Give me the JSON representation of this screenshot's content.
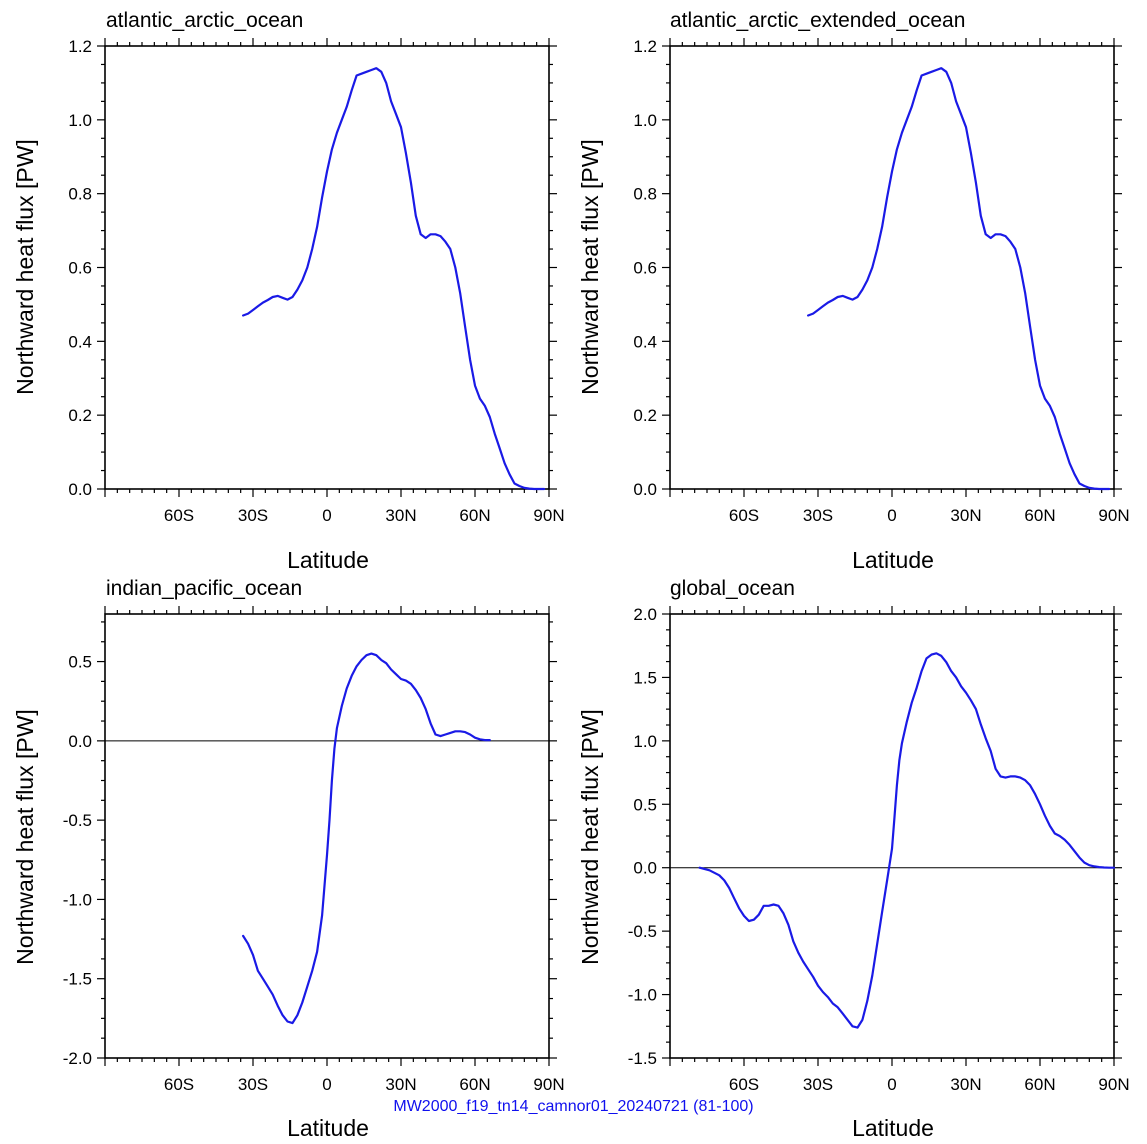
{
  "footer": "MW2000_f19_tn14_camnor01_20240721 (81-100)",
  "style": {
    "line_color": "#1a1ae6",
    "zero_line_color": "#000000"
  },
  "chart_data": [
    {
      "type": "line",
      "title": "atlantic_arctic_ocean",
      "xlabel": "Latitude",
      "ylabel": "Northward heat flux [PW]",
      "xlim": [
        -90,
        90
      ],
      "ylim": [
        0,
        1.2
      ],
      "xticks": [
        {
          "v": -60,
          "l": "60S"
        },
        {
          "v": -30,
          "l": "30S"
        },
        {
          "v": 0,
          "l": "0"
        },
        {
          "v": 30,
          "l": "30N"
        },
        {
          "v": 60,
          "l": "60N"
        },
        {
          "v": 90,
          "l": "90N"
        }
      ],
      "yticks": [
        {
          "v": 0,
          "l": "0.0"
        },
        {
          "v": 0.2,
          "l": "0.2"
        },
        {
          "v": 0.4,
          "l": "0.4"
        },
        {
          "v": 0.6,
          "l": "0.6"
        },
        {
          "v": 0.8,
          "l": "0.8"
        },
        {
          "v": 1.0,
          "l": "1.0"
        },
        {
          "v": 1.2,
          "l": "1.2"
        }
      ],
      "zero_line": false,
      "x": [
        -34,
        -32,
        -30,
        -28,
        -26,
        -24,
        -22,
        -20,
        -18,
        -16,
        -14,
        -12,
        -10,
        -8,
        -6,
        -4,
        -2,
        0,
        2,
        4,
        6,
        8,
        10,
        12,
        14,
        16,
        18,
        20,
        22,
        24,
        26,
        28,
        30,
        32,
        34,
        36,
        38,
        40,
        42,
        44,
        46,
        48,
        50,
        52,
        54,
        56,
        58,
        60,
        62,
        64,
        66,
        68,
        70,
        72,
        74,
        76,
        78,
        80,
        82,
        84,
        86,
        88
      ],
      "y": [
        0.47,
        0.475,
        0.485,
        0.495,
        0.505,
        0.512,
        0.52,
        0.523,
        0.518,
        0.513,
        0.52,
        0.54,
        0.565,
        0.6,
        0.65,
        0.71,
        0.79,
        0.86,
        0.92,
        0.965,
        1.0,
        1.035,
        1.08,
        1.12,
        1.125,
        1.13,
        1.135,
        1.14,
        1.13,
        1.1,
        1.05,
        1.015,
        0.98,
        0.91,
        0.83,
        0.74,
        0.69,
        0.68,
        0.69,
        0.69,
        0.685,
        0.67,
        0.65,
        0.6,
        0.53,
        0.44,
        0.35,
        0.28,
        0.245,
        0.225,
        0.195,
        0.15,
        0.11,
        0.07,
        0.04,
        0.015,
        0.008,
        0.003,
        0.001,
        0.0,
        0.0,
        0.0
      ]
    },
    {
      "type": "line",
      "title": "atlantic_arctic_extended_ocean",
      "xlabel": "Latitude",
      "ylabel": "Northward heat flux [PW]",
      "xlim": [
        -90,
        90
      ],
      "ylim": [
        0,
        1.2
      ],
      "xticks": [
        {
          "v": -60,
          "l": "60S"
        },
        {
          "v": -30,
          "l": "30S"
        },
        {
          "v": 0,
          "l": "0"
        },
        {
          "v": 30,
          "l": "30N"
        },
        {
          "v": 60,
          "l": "60N"
        },
        {
          "v": 90,
          "l": "90N"
        }
      ],
      "yticks": [
        {
          "v": 0,
          "l": "0.0"
        },
        {
          "v": 0.2,
          "l": "0.2"
        },
        {
          "v": 0.4,
          "l": "0.4"
        },
        {
          "v": 0.6,
          "l": "0.6"
        },
        {
          "v": 0.8,
          "l": "0.8"
        },
        {
          "v": 1.0,
          "l": "1.0"
        },
        {
          "v": 1.2,
          "l": "1.2"
        }
      ],
      "zero_line": false,
      "x": [
        -34,
        -32,
        -30,
        -28,
        -26,
        -24,
        -22,
        -20,
        -18,
        -16,
        -14,
        -12,
        -10,
        -8,
        -6,
        -4,
        -2,
        0,
        2,
        4,
        6,
        8,
        10,
        12,
        14,
        16,
        18,
        20,
        22,
        24,
        26,
        28,
        30,
        32,
        34,
        36,
        38,
        40,
        42,
        44,
        46,
        48,
        50,
        52,
        54,
        56,
        58,
        60,
        62,
        64,
        66,
        68,
        70,
        72,
        74,
        76,
        78,
        80,
        82,
        84,
        86,
        88
      ],
      "y": [
        0.47,
        0.475,
        0.485,
        0.495,
        0.505,
        0.512,
        0.52,
        0.523,
        0.518,
        0.513,
        0.52,
        0.54,
        0.565,
        0.6,
        0.65,
        0.71,
        0.79,
        0.86,
        0.92,
        0.965,
        1.0,
        1.035,
        1.08,
        1.12,
        1.125,
        1.13,
        1.135,
        1.14,
        1.13,
        1.1,
        1.05,
        1.015,
        0.98,
        0.91,
        0.83,
        0.74,
        0.69,
        0.68,
        0.69,
        0.69,
        0.685,
        0.67,
        0.65,
        0.6,
        0.53,
        0.44,
        0.35,
        0.28,
        0.245,
        0.225,
        0.195,
        0.15,
        0.11,
        0.07,
        0.04,
        0.015,
        0.008,
        0.003,
        0.001,
        0.0,
        0.0,
        0.0
      ]
    },
    {
      "type": "line",
      "title": "indian_pacific_ocean",
      "xlabel": "Latitude",
      "ylabel": "Northward heat flux [PW]",
      "xlim": [
        -90,
        90
      ],
      "ylim": [
        -2.0,
        0.8
      ],
      "xticks": [
        {
          "v": -60,
          "l": "60S"
        },
        {
          "v": -30,
          "l": "30S"
        },
        {
          "v": 0,
          "l": "0"
        },
        {
          "v": 30,
          "l": "30N"
        },
        {
          "v": 60,
          "l": "60N"
        },
        {
          "v": 90,
          "l": "90N"
        }
      ],
      "yticks": [
        {
          "v": -2.0,
          "l": "-2.0"
        },
        {
          "v": -1.5,
          "l": "-1.5"
        },
        {
          "v": -1.0,
          "l": "-1.0"
        },
        {
          "v": -0.5,
          "l": "-0.5"
        },
        {
          "v": 0.0,
          "l": "0.0"
        },
        {
          "v": 0.5,
          "l": "0.5"
        }
      ],
      "zero_line": true,
      "x": [
        -34,
        -32,
        -30,
        -28,
        -26,
        -24,
        -22,
        -20,
        -18,
        -16,
        -14,
        -12,
        -10,
        -8,
        -6,
        -4,
        -2,
        0,
        1,
        2,
        3,
        4,
        6,
        8,
        10,
        12,
        14,
        16,
        18,
        20,
        22,
        24,
        26,
        28,
        30,
        32,
        34,
        36,
        38,
        40,
        42,
        44,
        46,
        48,
        50,
        52,
        54,
        56,
        58,
        60,
        62,
        64,
        66
      ],
      "y": [
        -1.23,
        -1.28,
        -1.35,
        -1.45,
        -1.5,
        -1.55,
        -1.6,
        -1.67,
        -1.73,
        -1.77,
        -1.78,
        -1.73,
        -1.65,
        -1.55,
        -1.45,
        -1.33,
        -1.1,
        -0.72,
        -0.5,
        -0.25,
        -0.05,
        0.08,
        0.22,
        0.33,
        0.41,
        0.47,
        0.51,
        0.54,
        0.55,
        0.54,
        0.51,
        0.49,
        0.45,
        0.42,
        0.39,
        0.38,
        0.36,
        0.32,
        0.27,
        0.2,
        0.11,
        0.04,
        0.03,
        0.04,
        0.05,
        0.06,
        0.06,
        0.055,
        0.04,
        0.02,
        0.01,
        0.005,
        0.005
      ]
    },
    {
      "type": "line",
      "title": "global_ocean",
      "xlabel": "Latitude",
      "ylabel": "Northward heat flux [PW]",
      "xlim": [
        -90,
        90
      ],
      "ylim": [
        -1.5,
        2.0
      ],
      "xticks": [
        {
          "v": -60,
          "l": "60S"
        },
        {
          "v": -30,
          "l": "30S"
        },
        {
          "v": 0,
          "l": "0"
        },
        {
          "v": 30,
          "l": "30N"
        },
        {
          "v": 60,
          "l": "60N"
        },
        {
          "v": 90,
          "l": "90N"
        }
      ],
      "yticks": [
        {
          "v": -1.5,
          "l": "-1.5"
        },
        {
          "v": -1.0,
          "l": "-1.0"
        },
        {
          "v": -0.5,
          "l": "-0.5"
        },
        {
          "v": 0.0,
          "l": "0.0"
        },
        {
          "v": 0.5,
          "l": "0.5"
        },
        {
          "v": 1.0,
          "l": "1.0"
        },
        {
          "v": 1.5,
          "l": "1.5"
        },
        {
          "v": 2.0,
          "l": "2.0"
        }
      ],
      "zero_line": true,
      "x": [
        -78,
        -74,
        -70,
        -68,
        -66,
        -64,
        -62,
        -60,
        -58,
        -56,
        -54,
        -52,
        -50,
        -48,
        -46,
        -44,
        -42,
        -40,
        -38,
        -36,
        -34,
        -32,
        -30,
        -28,
        -26,
        -24,
        -22,
        -20,
        -18,
        -16,
        -14,
        -12,
        -10,
        -8,
        -6,
        -4,
        -2,
        0,
        1,
        2,
        3,
        4,
        6,
        8,
        10,
        12,
        14,
        16,
        18,
        20,
        22,
        24,
        26,
        28,
        30,
        32,
        34,
        36,
        38,
        40,
        42,
        44,
        46,
        48,
        50,
        52,
        54,
        56,
        58,
        60,
        62,
        64,
        66,
        68,
        70,
        72,
        74,
        76,
        78,
        80,
        82,
        84,
        86,
        88,
        90
      ],
      "y": [
        0.0,
        -0.02,
        -0.06,
        -0.1,
        -0.16,
        -0.24,
        -0.32,
        -0.38,
        -0.42,
        -0.41,
        -0.37,
        -0.3,
        -0.3,
        -0.29,
        -0.3,
        -0.36,
        -0.45,
        -0.58,
        -0.67,
        -0.74,
        -0.8,
        -0.86,
        -0.93,
        -0.98,
        -1.02,
        -1.07,
        -1.1,
        -1.15,
        -1.2,
        -1.25,
        -1.26,
        -1.2,
        -1.05,
        -0.85,
        -0.6,
        -0.35,
        -0.1,
        0.15,
        0.4,
        0.65,
        0.85,
        0.98,
        1.15,
        1.3,
        1.42,
        1.55,
        1.65,
        1.68,
        1.69,
        1.67,
        1.62,
        1.55,
        1.5,
        1.43,
        1.38,
        1.32,
        1.25,
        1.13,
        1.02,
        0.92,
        0.78,
        0.72,
        0.71,
        0.72,
        0.72,
        0.71,
        0.69,
        0.65,
        0.58,
        0.5,
        0.41,
        0.33,
        0.27,
        0.25,
        0.22,
        0.18,
        0.13,
        0.08,
        0.04,
        0.02,
        0.01,
        0.005,
        0.002,
        0.0,
        0.0
      ]
    }
  ]
}
